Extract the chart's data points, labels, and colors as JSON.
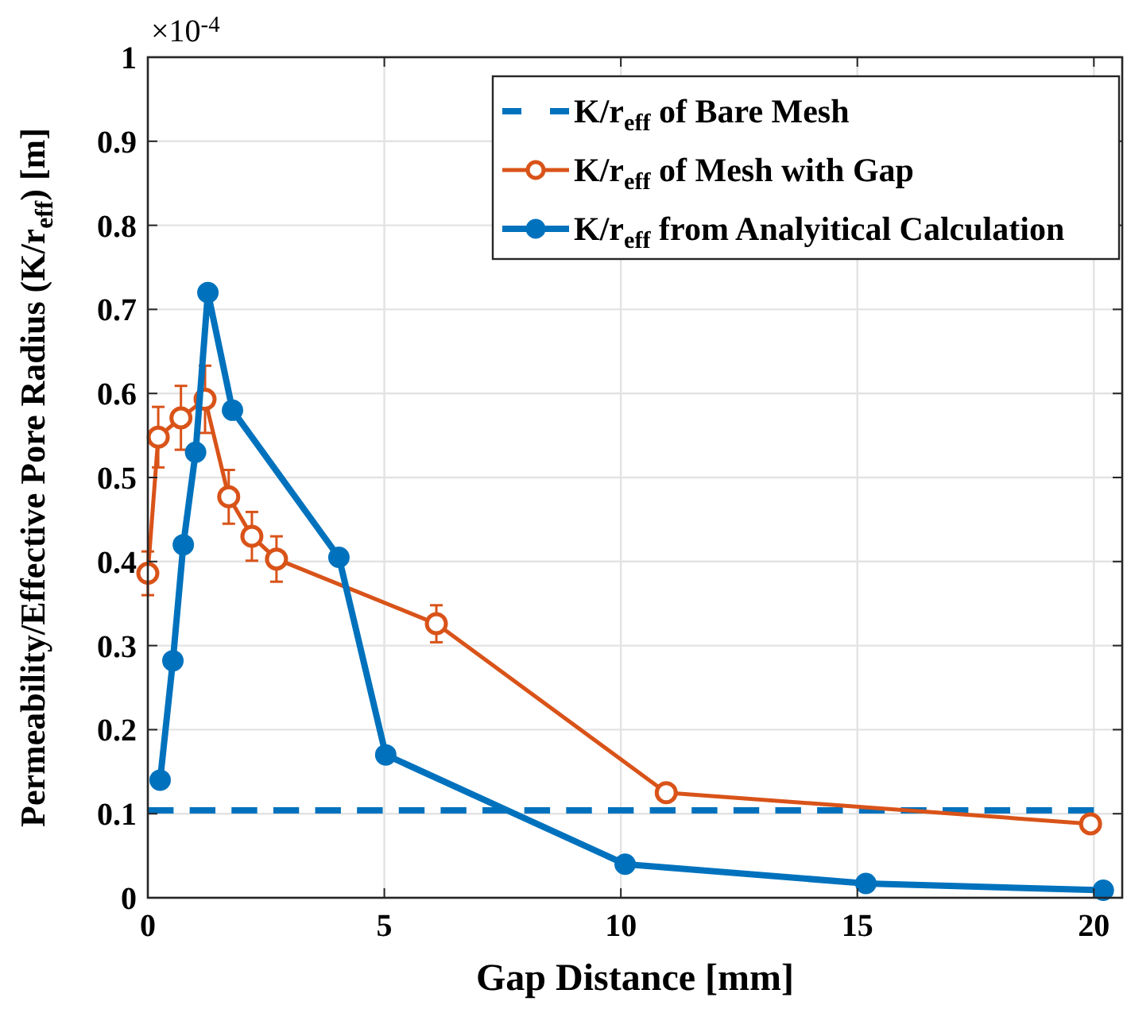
{
  "chart_data": {
    "type": "line",
    "xlabel": "Gap Distance [mm]",
    "ylabel": "Permeability/Effective Pore Radius (K/r$_{eff}$) [m]",
    "annotations": [
      "×10$^{-4}$"
    ],
    "xlim": [
      0,
      20.6
    ],
    "xticks": [
      0,
      5,
      10,
      15,
      20
    ],
    "ylim": [
      0,
      1
    ],
    "yticks": [
      0,
      0.1,
      0.2,
      0.3,
      0.4,
      0.5,
      0.6,
      0.7,
      0.8,
      0.9,
      1
    ],
    "grid": true,
    "legend": "top right",
    "series": [
      {
        "name": "K/r$_{eff}$ of Bare Mesh",
        "color": "#0072bd",
        "x": [
          0,
          20
        ],
        "values": [
          0.104,
          0.104
        ],
        "line_style": "dashed",
        "marker": "none"
      },
      {
        "name": "K/r$_{eff}$ of Mesh with Gap",
        "color": "#d95319",
        "x": [
          0,
          0.22,
          0.7,
          1.21,
          1.71,
          2.2,
          2.72,
          6.1,
          10.96,
          19.93
        ],
        "values": [
          0.386,
          0.548,
          0.571,
          0.593,
          0.477,
          0.43,
          0.403,
          0.326,
          0.125,
          0.088
        ],
        "errors": [
          0.026,
          0.036,
          0.038,
          0.04,
          0.032,
          0.029,
          0.027,
          0.022,
          0.005,
          0.005
        ],
        "line_style": "solid",
        "marker": "circle"
      },
      {
        "name": "K/r$_{eff}$ from Analyitical Calculation",
        "color": "#0072bd",
        "x": [
          0.26,
          0.53,
          0.75,
          1.01,
          1.27,
          1.79,
          4.04,
          5.03,
          10.09,
          15.18,
          20.2
        ],
        "values": [
          0.14,
          0.282,
          0.42,
          0.53,
          0.72,
          0.58,
          0.405,
          0.17,
          0.04,
          0.017,
          0.009
        ],
        "line_style": "solid",
        "marker": "circle"
      }
    ]
  }
}
